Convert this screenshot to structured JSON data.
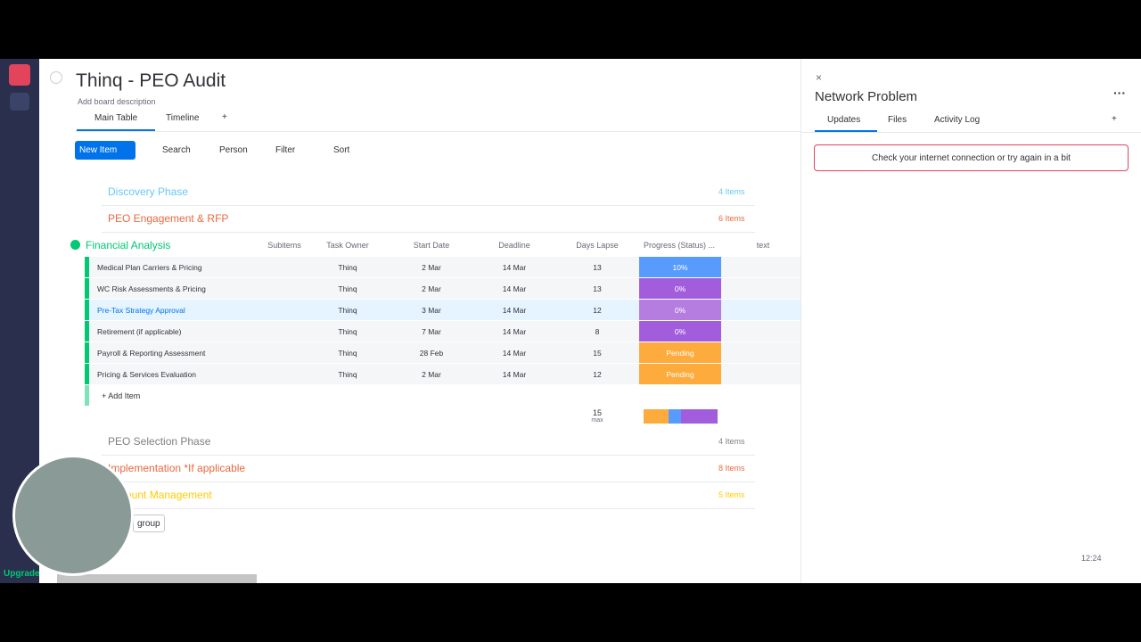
{
  "sidebar": {
    "upgrade": "Upgrade"
  },
  "board": {
    "title": "Thinq - PEO Audit",
    "description": "Add board description",
    "tabs": [
      "Main Table",
      "Timeline",
      "+"
    ]
  },
  "toolbar": {
    "new_item": "New Item",
    "search": "Search",
    "person": "Person",
    "filter": "Filter",
    "sort": "Sort"
  },
  "groups_top": [
    {
      "name": "Discovery Phase",
      "count": "4 Items",
      "color": "#66c8f5"
    },
    {
      "name": "PEO Engagement & RFP",
      "count": "6 Items",
      "color": "#e8693f"
    }
  ],
  "main_group": {
    "name": "Financial Analysis",
    "color": "#00c875",
    "columns": [
      "Subitems",
      "Task Owner",
      "Start Date",
      "Deadline",
      "Days Lapse",
      "Progress (Status) ...",
      "text"
    ],
    "rows": [
      {
        "name": "Medical Plan Carriers & Pricing",
        "owner": "Thinq",
        "start": "2 Mar",
        "deadline": "14 Mar",
        "days": "13",
        "status": "10%",
        "color": "#579bfc"
      },
      {
        "name": "WC Risk Assessments & Pricing",
        "owner": "Thinq",
        "start": "2 Mar",
        "deadline": "14 Mar",
        "days": "13",
        "status": "0%",
        "color": "#a25ddc"
      },
      {
        "name": "Pre-Tax Strategy Approval",
        "owner": "Thinq",
        "start": "3 Mar",
        "deadline": "14 Mar",
        "days": "12",
        "status": "0%",
        "color": "#b57de0"
      },
      {
        "name": "Retirement (if applicable)",
        "owner": "Thinq",
        "start": "7 Mar",
        "deadline": "14 Mar",
        "days": "8",
        "status": "0%",
        "color": "#a25ddc"
      },
      {
        "name": "Payroll & Reporting Assessment",
        "owner": "Thinq",
        "start": "28 Feb",
        "deadline": "14 Mar",
        "days": "15",
        "status": "Pending",
        "color": "#fdab3d"
      },
      {
        "name": "Pricing & Services Evaluation",
        "owner": "Thinq",
        "start": "2 Mar",
        "deadline": "14 Mar",
        "days": "12",
        "status": "Pending",
        "color": "#fdab3d"
      }
    ],
    "add_item": "+ Add Item",
    "summary": "15",
    "summary_label": "max"
  },
  "groups_bottom": [
    {
      "name": "PEO Selection Phase",
      "count": "4 Items",
      "color": "#808080"
    },
    {
      "name": "Implementation *If applicable",
      "count": "8 Items",
      "color": "#e8693f"
    },
    {
      "name": "Account Management",
      "count": "5 Items",
      "color": "#ffcb00"
    }
  ],
  "add_group": "group",
  "panel": {
    "title": "Network Problem",
    "tabs": [
      "Updates",
      "Files",
      "Activity Log",
      "+"
    ],
    "message": "Check your internet connection or try again in a bit",
    "time": "12:24"
  }
}
